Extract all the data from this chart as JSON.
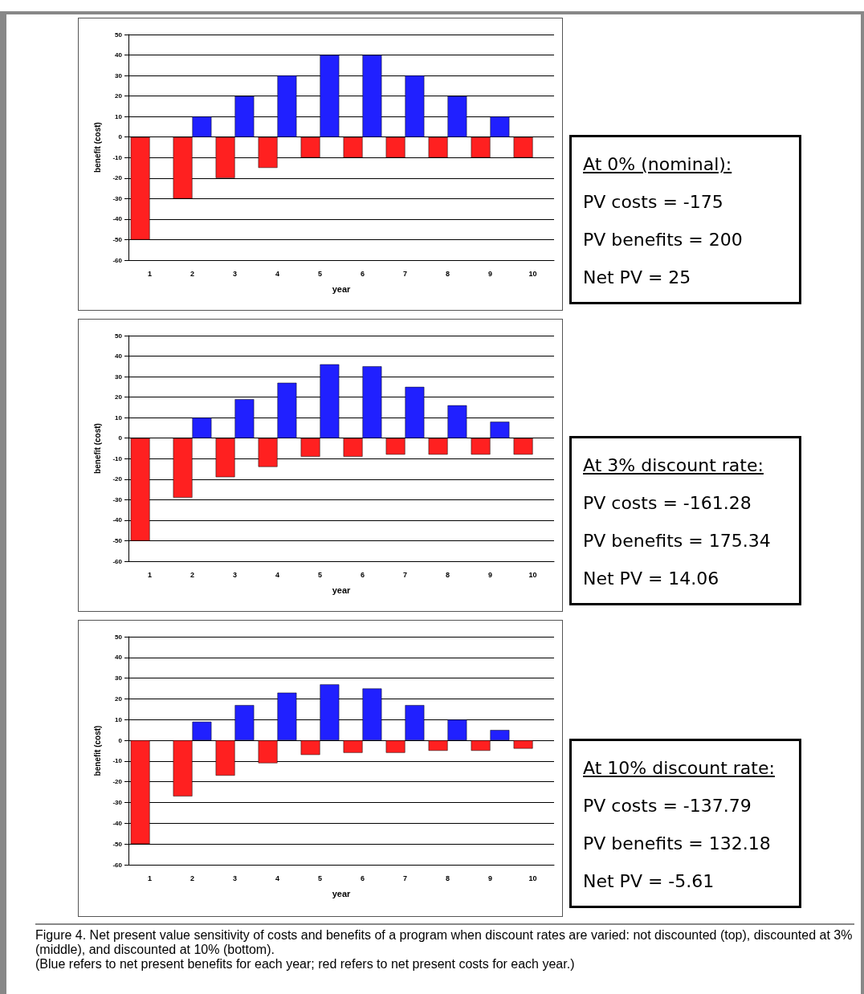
{
  "chart_data": [
    {
      "type": "bar",
      "xlabel": "year",
      "ylabel": "benefit (cost)",
      "categories": [
        "1",
        "2",
        "3",
        "4",
        "5",
        "6",
        "7",
        "8",
        "9",
        "10"
      ],
      "series": [
        {
          "color": "#ff2020",
          "values": [
            -50,
            -30,
            -20,
            -15,
            -10,
            -10,
            -10,
            -10,
            -10,
            -10
          ]
        },
        {
          "color": "#2020ff",
          "values": [
            null,
            10,
            20,
            30,
            40,
            40,
            30,
            20,
            10,
            null
          ]
        }
      ],
      "ylim": [
        -60,
        50
      ],
      "yticks": [
        -60,
        -50,
        -40,
        -30,
        -20,
        -10,
        0,
        10,
        20,
        30,
        40,
        50
      ],
      "grid": "y",
      "annotations": [
        "At 0% (nominal):",
        "PV costs = -175",
        "PV benefits = 200",
        "Net PV = 25"
      ]
    },
    {
      "type": "bar",
      "xlabel": "year",
      "ylabel": "benefit (cost)",
      "categories": [
        "1",
        "2",
        "3",
        "4",
        "5",
        "6",
        "7",
        "8",
        "9",
        "10"
      ],
      "series": [
        {
          "color": "#ff2020",
          "values": [
            -50,
            -29,
            -19,
            -14,
            -9,
            -9,
            -8,
            -8,
            -8,
            -8
          ]
        },
        {
          "color": "#2020ff",
          "values": [
            null,
            10,
            19,
            27,
            36,
            35,
            25,
            16,
            8,
            null
          ]
        }
      ],
      "ylim": [
        -60,
        50
      ],
      "yticks": [
        -60,
        -50,
        -40,
        -30,
        -20,
        -10,
        0,
        10,
        20,
        30,
        40,
        50
      ],
      "grid": "y",
      "annotations": [
        "At 3% discount rate:",
        "PV costs = -161.28",
        "PV benefits = 175.34",
        "Net PV = 14.06"
      ]
    },
    {
      "type": "bar",
      "xlabel": "year",
      "ylabel": "benefit (cost)",
      "categories": [
        "1",
        "2",
        "3",
        "4",
        "5",
        "6",
        "7",
        "8",
        "9",
        "10"
      ],
      "series": [
        {
          "color": "#ff2020",
          "values": [
            -50,
            -27,
            -17,
            -11,
            -7,
            -6,
            -6,
            -5,
            -5,
            -4
          ]
        },
        {
          "color": "#2020ff",
          "values": [
            null,
            9,
            17,
            23,
            27,
            25,
            17,
            10,
            5,
            null
          ]
        }
      ],
      "ylim": [
        -60,
        50
      ],
      "yticks": [
        -60,
        -50,
        -40,
        -30,
        -20,
        -10,
        0,
        10,
        20,
        30,
        40,
        50
      ],
      "grid": "y",
      "annotations": [
        "At 10% discount rate:",
        "PV costs = -137.79",
        "PV benefits = 132.18",
        "Net PV = -5.61",
        "Figure 4. Net present value sensitivity of costs and benefits of a program when discount rates are varied: not discounted (top), discounted at 3% (middle), and discounted at 10% (bottom).\n(Blue refers to net present benefits for each year; red refers to net present costs for each year.)"
      ]
    }
  ]
}
